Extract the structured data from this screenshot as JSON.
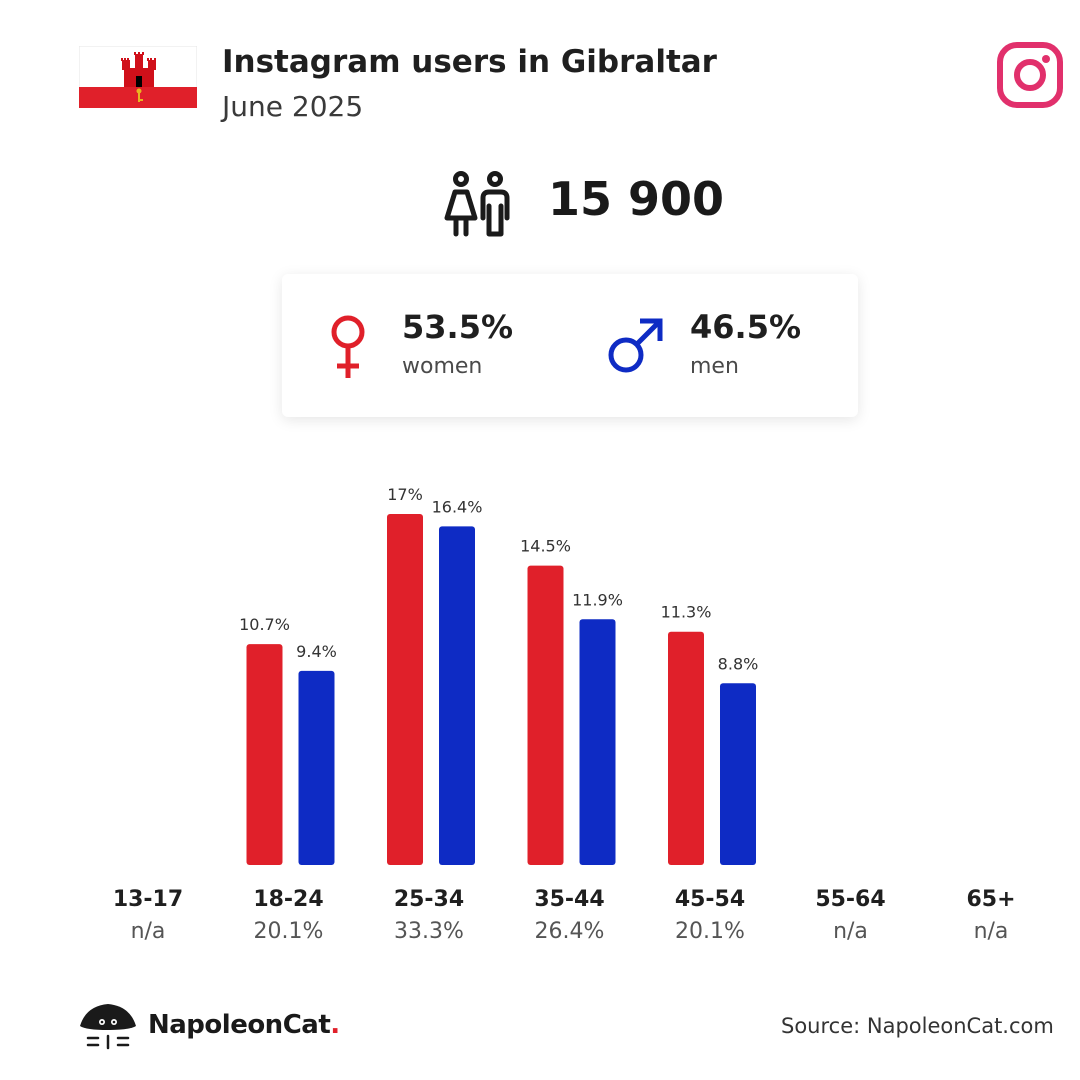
{
  "header": {
    "title": "Instagram users in Gibraltar",
    "subtitle": "June 2025"
  },
  "total_users": "15 900",
  "gender": {
    "women_value": "53.5%",
    "women_label": "women",
    "men_value": "46.5%",
    "men_label": "men"
  },
  "colors": {
    "women": "#e0202a",
    "men": "#0e2bc4",
    "instagram": "#e1306c"
  },
  "chart_data": {
    "type": "bar",
    "categories": [
      "13-17",
      "18-24",
      "25-34",
      "35-44",
      "45-54",
      "55-64",
      "65+"
    ],
    "category_totals": [
      "n/a",
      "20.1%",
      "33.3%",
      "26.4%",
      "20.1%",
      "n/a",
      "n/a"
    ],
    "series": [
      {
        "values": [
          null,
          10.7,
          17,
          14.5,
          11.3,
          null,
          null
        ],
        "labels": [
          "",
          "10.7%",
          "17%",
          "14.5%",
          "11.3%",
          "",
          ""
        ]
      },
      {
        "values": [
          null,
          9.4,
          16.4,
          11.9,
          8.8,
          null,
          null
        ],
        "labels": [
          "",
          "9.4%",
          "16.4%",
          "11.9%",
          "8.8%",
          "",
          ""
        ]
      }
    ],
    "ylim": [
      0,
      17
    ]
  },
  "footer": {
    "brand": "NapoleonCat",
    "brand_dot": ".",
    "source": "Source: NapoleonCat.com"
  }
}
